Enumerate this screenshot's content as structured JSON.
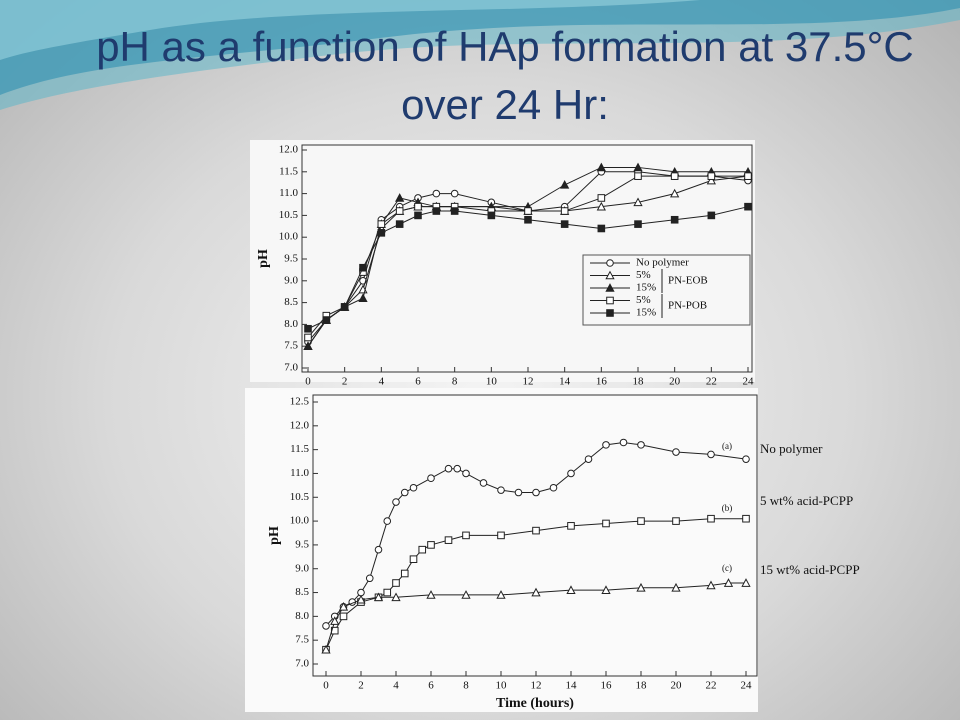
{
  "title": "pH as a function of HAp formation at 37.5°C over 24 Hr:",
  "chart_data": [
    {
      "type": "line",
      "ylabel": "pH",
      "x": [
        0,
        1,
        2,
        3,
        4,
        5,
        6,
        7,
        8,
        10,
        12,
        14,
        16,
        18,
        20,
        22,
        24
      ],
      "xlim": [
        0,
        24
      ],
      "xticks": [
        0,
        2,
        4,
        6,
        8,
        10,
        12,
        14,
        16,
        18,
        20,
        22,
        24
      ],
      "ylim": [
        7,
        12
      ],
      "yticks": [
        {
          "value": 7,
          "label": "7.0"
        },
        7.5,
        {
          "value": 8,
          "label": "8.0"
        },
        8.5,
        {
          "value": 9,
          "label": "9.0"
        },
        9.5,
        {
          "value": 10,
          "label": "10.0"
        },
        10.5,
        {
          "value": 11,
          "label": "11.0"
        },
        11.5,
        {
          "value": 12,
          "label": "12.0"
        }
      ],
      "legend_groups": [
        "PN-EOB",
        "PN-POB"
      ],
      "series": [
        {
          "name": "No polymer",
          "color": "#222222",
          "marker": "circle-open",
          "values": [
            7.6,
            8.1,
            8.4,
            9.0,
            10.4,
            10.7,
            10.9,
            11.0,
            11.0,
            10.8,
            10.6,
            10.7,
            11.5,
            11.5,
            11.4,
            11.4,
            11.3
          ]
        },
        {
          "name": "5%",
          "color": "#222222",
          "marker": "triangle-open",
          "values": [
            7.5,
            8.1,
            8.4,
            8.8,
            10.2,
            10.6,
            10.7,
            10.7,
            10.7,
            10.7,
            10.6,
            10.6,
            10.7,
            10.8,
            11.0,
            11.3,
            11.4
          ]
        },
        {
          "name": "15%",
          "color": "#222222",
          "marker": "triangle-filled",
          "values": [
            7.5,
            8.1,
            8.4,
            8.6,
            10.3,
            10.9,
            10.8,
            10.7,
            10.7,
            10.7,
            10.7,
            11.2,
            11.6,
            11.6,
            11.5,
            11.5,
            11.5
          ]
        },
        {
          "name": "5%",
          "color": "#222222",
          "marker": "square-open",
          "values": [
            7.7,
            8.2,
            8.4,
            9.2,
            10.3,
            10.6,
            10.7,
            10.7,
            10.7,
            10.6,
            10.6,
            10.6,
            10.9,
            11.4,
            11.4,
            11.4,
            11.4
          ]
        },
        {
          "name": "15%",
          "color": "#222222",
          "marker": "square-filled",
          "values": [
            7.9,
            8.1,
            8.4,
            9.3,
            10.1,
            10.3,
            10.5,
            10.6,
            10.6,
            10.5,
            10.4,
            10.3,
            10.2,
            10.3,
            10.4,
            10.5,
            10.7
          ]
        }
      ]
    },
    {
      "type": "line",
      "ylabel": "pH",
      "xlabel": "Time (hours)",
      "xlim": [
        0,
        24
      ],
      "xticks": [
        0,
        2,
        4,
        6,
        8,
        10,
        12,
        14,
        16,
        18,
        20,
        22,
        24
      ],
      "ylim": [
        7,
        12.5
      ],
      "yticks": [
        {
          "value": 7,
          "label": "7.0"
        },
        7.5,
        {
          "value": 8,
          "label": "8.0"
        },
        8.5,
        {
          "value": 9,
          "label": "9.0"
        },
        9.5,
        {
          "value": 10,
          "label": "10.0"
        },
        10.5,
        {
          "value": 11,
          "label": "11.0"
        },
        11.5,
        {
          "value": 12,
          "label": "12.0"
        },
        12.5
      ],
      "annotations": [
        "No polymer",
        "5 wt% acid-PCPP",
        "15 wt% acid-PCPP"
      ],
      "series": [
        {
          "name": "(a)",
          "color": "#222222",
          "marker": "circle-open",
          "x": [
            0,
            0.5,
            1,
            1.5,
            2,
            2.5,
            3,
            3.5,
            4,
            4.5,
            5,
            6,
            7,
            7.5,
            8,
            9,
            10,
            11,
            12,
            13,
            14,
            15,
            16,
            17,
            18,
            20,
            22,
            24
          ],
          "values": [
            7.8,
            8.0,
            8.2,
            8.3,
            8.5,
            8.8,
            9.4,
            10.0,
            10.4,
            10.6,
            10.7,
            10.9,
            11.1,
            11.1,
            11.0,
            10.8,
            10.65,
            10.6,
            10.6,
            10.7,
            11.0,
            11.3,
            11.6,
            11.65,
            11.6,
            11.45,
            11.4,
            11.3
          ]
        },
        {
          "name": "(b)",
          "color": "#222222",
          "marker": "square-open",
          "x": [
            0,
            0.5,
            1,
            2,
            3,
            3.5,
            4,
            4.5,
            5,
            5.5,
            6,
            7,
            8,
            10,
            12,
            14,
            16,
            18,
            20,
            22,
            24
          ],
          "values": [
            7.3,
            7.7,
            8.0,
            8.3,
            8.4,
            8.5,
            8.7,
            8.9,
            9.2,
            9.4,
            9.5,
            9.6,
            9.7,
            9.7,
            9.8,
            9.9,
            9.95,
            10.0,
            10.0,
            10.05,
            10.05
          ]
        },
        {
          "name": "(c)",
          "color": "#222222",
          "marker": "triangle-open",
          "x": [
            0,
            0.5,
            1,
            2,
            3,
            4,
            6,
            8,
            10,
            12,
            14,
            16,
            18,
            20,
            22,
            23,
            24
          ],
          "values": [
            7.3,
            7.9,
            8.2,
            8.35,
            8.4,
            8.4,
            8.45,
            8.45,
            8.45,
            8.5,
            8.55,
            8.55,
            8.6,
            8.6,
            8.65,
            8.7,
            8.7
          ]
        }
      ]
    }
  ]
}
